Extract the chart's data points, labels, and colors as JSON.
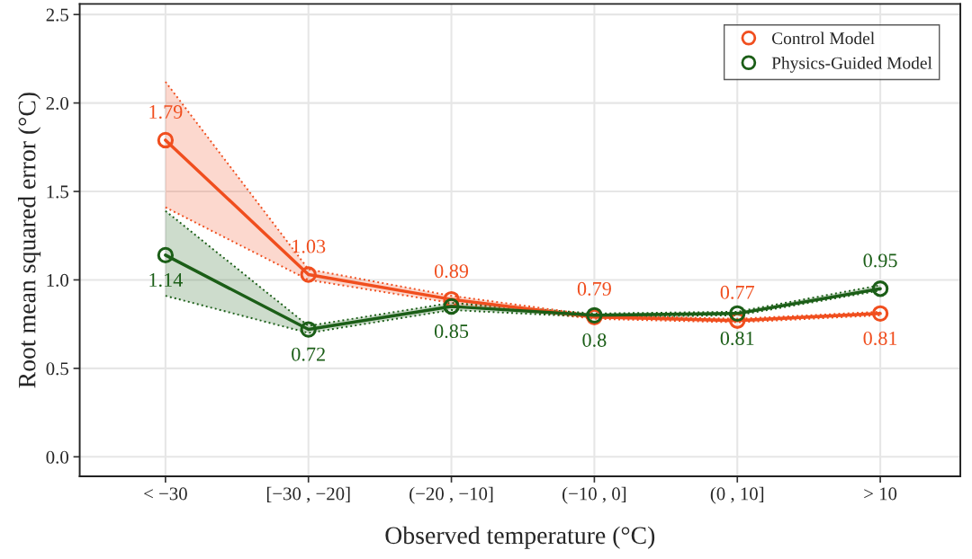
{
  "chart_data": {
    "type": "line",
    "xlabel": "Observed temperature (°C)",
    "ylabel": "Root mean squared error (°C)",
    "categories": [
      "< −30",
      "[−30 , −20]",
      "(−20 , −10]",
      "(−10 , 0]",
      "(0 , 10]",
      "> 10"
    ],
    "series": [
      {
        "name": "Control Model",
        "color": "#f04e1e",
        "values": [
          1.79,
          1.03,
          0.89,
          0.79,
          0.77,
          0.81
        ],
        "lower": [
          1.41,
          1.0,
          0.87,
          0.78,
          0.76,
          0.8
        ],
        "upper": [
          2.12,
          1.06,
          0.91,
          0.8,
          0.78,
          0.82
        ]
      },
      {
        "name": "Physics-Guided Model",
        "color": "#1b5e17",
        "values": [
          1.14,
          0.72,
          0.85,
          0.8,
          0.81,
          0.95
        ],
        "lower": [
          0.91,
          0.7,
          0.83,
          0.79,
          0.8,
          0.94
        ],
        "upper": [
          1.39,
          0.74,
          0.87,
          0.81,
          0.82,
          0.97
        ]
      }
    ],
    "data_labels": true,
    "ylim": [
      -0.11,
      2.56
    ],
    "yticks": [
      {
        "value": 0,
        "label": "0.0"
      },
      0.5,
      {
        "value": 1,
        "label": "1.0"
      },
      1.5,
      {
        "value": 2,
        "label": "2.0"
      },
      2.5
    ],
    "grid": true,
    "legend": "top right",
    "marker": "circle",
    "line_style": "solid"
  }
}
